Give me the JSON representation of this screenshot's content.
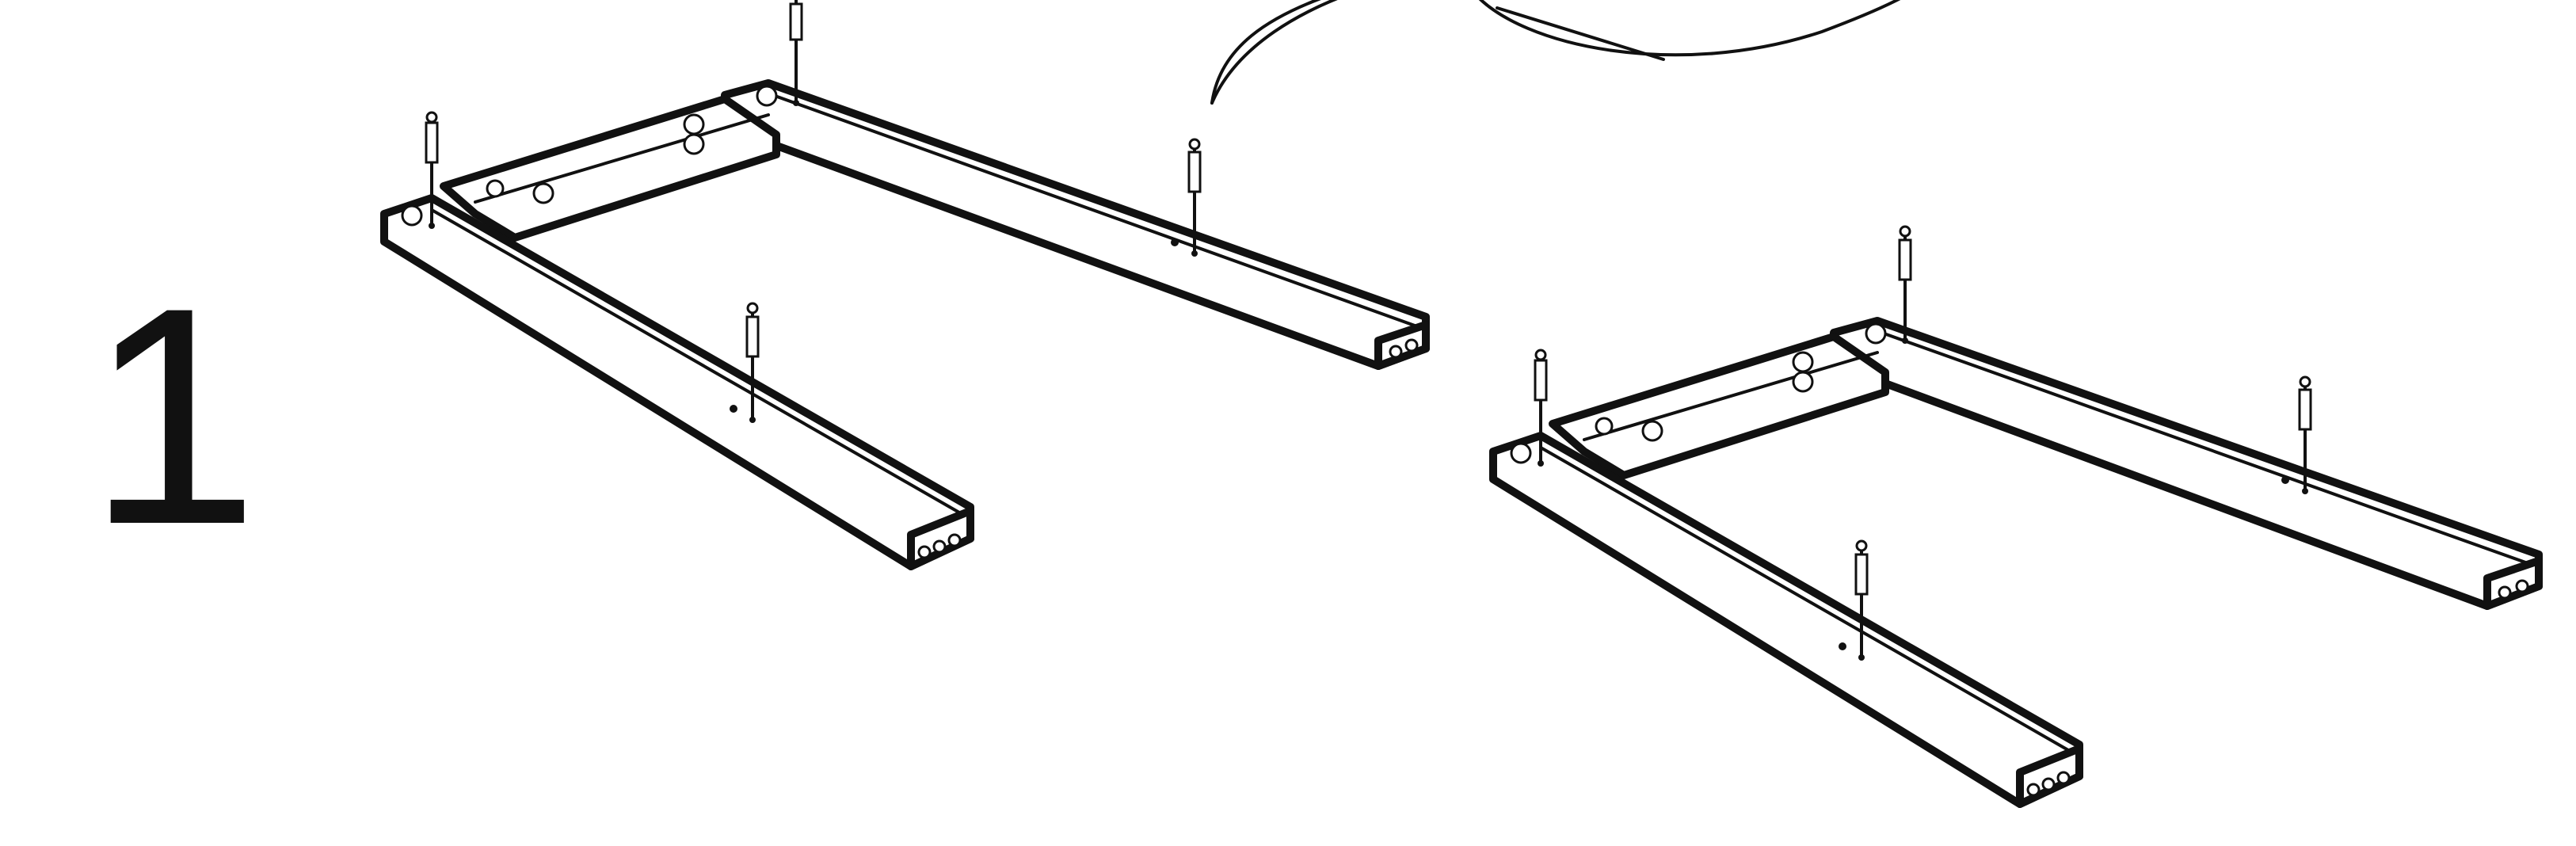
{
  "step": {
    "number": "1"
  },
  "figures": [
    {
      "name": "frame-left",
      "dowels": 4
    },
    {
      "name": "frame-right",
      "dowels": 4
    }
  ],
  "colors": {
    "ink": "#111111",
    "paper": "#ffffff"
  }
}
